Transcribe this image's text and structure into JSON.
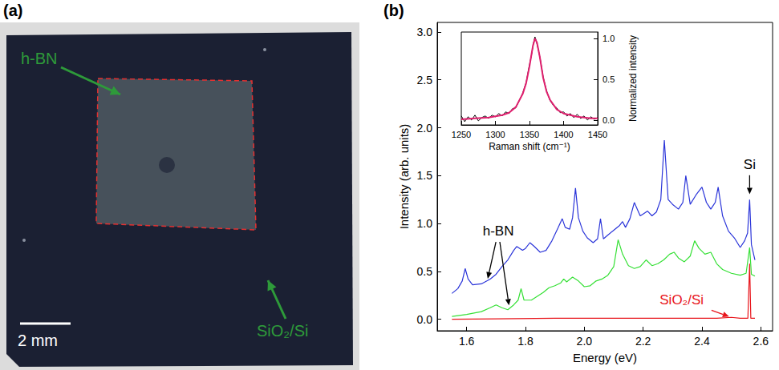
{
  "panel_a": {
    "panel": "(a)",
    "labels": [
      "h-BN",
      "SiO₂/Si"
    ],
    "scale_bar": "2 mm"
  },
  "chart_data": [
    {
      "panel": "(b)",
      "type": "line",
      "xlabel": "Energy (eV)",
      "ylabel": "Intensity (arb. units)",
      "xlim": [
        1.5,
        2.64
      ],
      "ylim": [
        -0.12,
        3.1
      ],
      "xticks": [
        1.6,
        1.8,
        {
          "value": 2,
          "label": "2.0"
        },
        2.2,
        2.4,
        2.6
      ],
      "yticks": [
        {
          "value": 0,
          "label": "0.0"
        },
        0.5,
        {
          "value": 1,
          "label": "1.0"
        },
        1.5,
        {
          "value": 2,
          "label": "2.0"
        },
        2.5,
        {
          "value": 3,
          "label": "3.0"
        }
      ],
      "series": [
        {
          "color": "#2b35d9",
          "x": [
            1.55,
            1.57,
            1.585,
            1.595,
            1.605,
            1.62,
            1.65,
            1.68,
            1.7,
            1.72,
            1.74,
            1.76,
            1.77,
            1.79,
            1.8,
            1.815,
            1.83,
            1.85,
            1.87,
            1.89,
            1.91,
            1.925,
            1.935,
            1.95,
            1.96,
            1.97,
            1.98,
            1.995,
            2.01,
            2.03,
            2.045,
            2.055,
            2.065,
            2.08,
            2.1,
            2.12,
            2.13,
            2.14,
            2.155,
            2.17,
            2.18,
            2.19,
            2.2,
            2.215,
            2.23,
            2.245,
            2.26,
            2.272,
            2.285,
            2.3,
            2.32,
            2.335,
            2.345,
            2.36,
            2.38,
            2.4,
            2.415,
            2.43,
            2.445,
            2.455,
            2.47,
            2.49,
            2.51,
            2.53,
            2.545,
            2.555,
            2.562,
            2.568,
            2.58
          ],
          "values": [
            0.27,
            0.32,
            0.4,
            0.53,
            0.42,
            0.36,
            0.37,
            0.42,
            0.47,
            0.55,
            0.62,
            0.72,
            0.76,
            0.72,
            0.74,
            0.8,
            0.76,
            0.7,
            0.72,
            0.82,
            0.95,
            1.05,
            0.96,
            0.94,
            1.06,
            1.37,
            1.06,
            0.92,
            0.85,
            0.8,
            0.84,
            1.05,
            0.84,
            0.88,
            0.93,
            0.98,
            1.02,
            0.96,
            1.05,
            1.22,
            1.15,
            1.08,
            1.1,
            1.13,
            1.08,
            1.12,
            1.25,
            1.87,
            1.25,
            1.2,
            1.15,
            1.22,
            1.5,
            1.2,
            1.3,
            1.38,
            1.22,
            1.15,
            1.22,
            1.38,
            1.08,
            0.92,
            0.85,
            0.75,
            0.82,
            0.9,
            1.25,
            0.78,
            0.62
          ]
        },
        {
          "color": "#35e035",
          "x": [
            1.55,
            1.6,
            1.65,
            1.68,
            1.7,
            1.72,
            1.74,
            1.76,
            1.775,
            1.785,
            1.795,
            1.82,
            1.84,
            1.86,
            1.88,
            1.9,
            1.92,
            1.93,
            1.94,
            1.96,
            1.98,
            2.0,
            2.02,
            2.04,
            2.06,
            2.08,
            2.1,
            2.115,
            2.13,
            2.15,
            2.17,
            2.19,
            2.21,
            2.23,
            2.25,
            2.27,
            2.29,
            2.305,
            2.32,
            2.34,
            2.36,
            2.375,
            2.39,
            2.41,
            2.43,
            2.45,
            2.47,
            2.5,
            2.53,
            2.55,
            2.562,
            2.568,
            2.58
          ],
          "values": [
            0.03,
            0.05,
            0.08,
            0.12,
            0.15,
            0.12,
            0.1,
            0.15,
            0.2,
            0.32,
            0.2,
            0.2,
            0.24,
            0.28,
            0.33,
            0.35,
            0.38,
            0.42,
            0.39,
            0.44,
            0.4,
            0.34,
            0.35,
            0.4,
            0.42,
            0.46,
            0.55,
            0.83,
            0.68,
            0.56,
            0.53,
            0.55,
            0.62,
            0.56,
            0.58,
            0.62,
            0.68,
            0.7,
            0.64,
            0.6,
            0.66,
            0.82,
            0.74,
            0.68,
            0.7,
            0.58,
            0.52,
            0.48,
            0.46,
            0.48,
            0.75,
            0.47,
            0.45
          ]
        },
        {
          "color": "#e8141a",
          "x": [
            1.55,
            1.7,
            1.9,
            2.1,
            2.3,
            2.45,
            2.5,
            2.53,
            2.556,
            2.562,
            2.566,
            2.58
          ],
          "values": [
            0,
            0.005,
            0.01,
            0.01,
            0.01,
            0.01,
            0.02,
            0.01,
            0.01,
            0.58,
            0.01,
            0.01
          ]
        }
      ],
      "annotations": [
        {
          "text": "h-BN",
          "points_to": [
            [
              1.67,
              0.4
            ],
            [
              1.745,
              0.12
            ]
          ]
        },
        {
          "text": "Si",
          "points_to": [
            [
              2.562,
              1.28
            ]
          ]
        },
        {
          "text": "SiO₂/Si",
          "color": "#e8141a",
          "points_to": [
            [
              2.5,
              0.02
            ]
          ]
        }
      ]
    },
    {
      "type": "line",
      "xlabel": "Raman shift (cm⁻¹)",
      "ylabel": "Normalized intensity",
      "xlim": [
        1250,
        1450
      ],
      "ylim": [
        -0.06,
        1.08
      ],
      "xticks": [
        1250,
        1300,
        1350,
        1400,
        1450
      ],
      "yticks": [
        {
          "value": 0,
          "label": "0.0"
        },
        0.5,
        {
          "value": 1,
          "label": "1.0"
        }
      ],
      "series": [
        {
          "color": "#000000",
          "x": [
            1250,
            1255,
            1260,
            1265,
            1270,
            1275,
            1280,
            1285,
            1290,
            1295,
            1300,
            1305,
            1310,
            1315,
            1320,
            1325,
            1330,
            1335,
            1340,
            1345,
            1350,
            1353,
            1356,
            1358,
            1360,
            1363,
            1366,
            1370,
            1375,
            1380,
            1385,
            1390,
            1395,
            1400,
            1405,
            1410,
            1415,
            1420,
            1425,
            1430,
            1435,
            1440,
            1445,
            1450
          ],
          "values": [
            0.05,
            -0.02,
            0.04,
            0,
            0.06,
            -0.01,
            0.03,
            0.05,
            0.02,
            0.06,
            0.04,
            0.08,
            0.05,
            0.1,
            0.08,
            0.14,
            0.15,
            0.24,
            0.33,
            0.46,
            0.68,
            0.8,
            0.95,
            1.02,
            0.97,
            0.86,
            0.74,
            0.53,
            0.36,
            0.24,
            0.18,
            0.15,
            0.09,
            0.1,
            0.05,
            0.08,
            0.03,
            0.07,
            0.02,
            0.05,
            0,
            0.04,
            0.01,
            0.03
          ]
        },
        {
          "color": "#e0206e",
          "x": [
            1250,
            1270,
            1290,
            1310,
            1320,
            1330,
            1340,
            1345,
            1350,
            1355,
            1358,
            1361,
            1365,
            1370,
            1375,
            1380,
            1390,
            1400,
            1420,
            1440,
            1450
          ],
          "values": [
            0.01,
            0.02,
            0.03,
            0.06,
            0.09,
            0.16,
            0.32,
            0.45,
            0.66,
            0.91,
            1.0,
            0.95,
            0.78,
            0.52,
            0.35,
            0.25,
            0.13,
            0.08,
            0.04,
            0.02,
            0.02
          ]
        }
      ]
    }
  ]
}
